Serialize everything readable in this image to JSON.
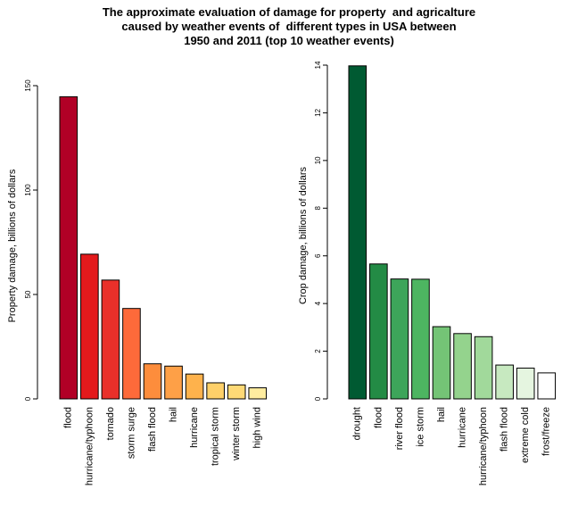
{
  "title_lines": [
    "The approximate evaluation of damage for property  and agricalture",
    "caused by weather events of  different types in USA between",
    "1950 and 2011 (top 10 weather events)"
  ],
  "chart_data": [
    {
      "type": "bar",
      "title": "The approximate evaluation of damage for property  and agricalture caused by weather events of  different types in USA between 1950 and 2011 (top 10 weather events)",
      "ylabel": "Property damage, billions of dollars",
      "categories": [
        "flood",
        "hurricane/typhoon",
        "tornado",
        "storm surge",
        "flash flood",
        "hail",
        "hurricane",
        "tropical storm",
        "winter storm",
        "high wind"
      ],
      "values": [
        144.7,
        69.3,
        56.9,
        43.3,
        16.8,
        15.7,
        11.9,
        7.7,
        6.7,
        5.3
      ],
      "ylim": [
        0,
        150
      ],
      "yticks": [
        0,
        50,
        100,
        150
      ],
      "colors": [
        "#b10026",
        "#e31a1c",
        "#e9302a",
        "#fd6a3a",
        "#fd8d3c",
        "#fea047",
        "#feb24c",
        "#fed069",
        "#fed976",
        "#ffeda0"
      ]
    },
    {
      "type": "bar",
      "ylabel": "Crop damage, billions of dollars",
      "categories": [
        "drought",
        "flood",
        "river flood",
        "ice storm",
        "hail",
        "hurricane",
        "hurricane/typhoon",
        "flash flood",
        "extreme cold",
        "frost/freeze"
      ],
      "values": [
        13.97,
        5.66,
        5.03,
        5.02,
        3.03,
        2.74,
        2.61,
        1.42,
        1.29,
        1.09
      ],
      "ylim": [
        0,
        14
      ],
      "yticks": [
        0,
        2,
        4,
        6,
        8,
        10,
        12,
        14
      ],
      "colors": [
        "#005a32",
        "#238b45",
        "#3da55a",
        "#4db561",
        "#74c476",
        "#94d38d",
        "#a1d99b",
        "#c7e9c0",
        "#e5f5e0",
        "#ffffff"
      ]
    }
  ]
}
